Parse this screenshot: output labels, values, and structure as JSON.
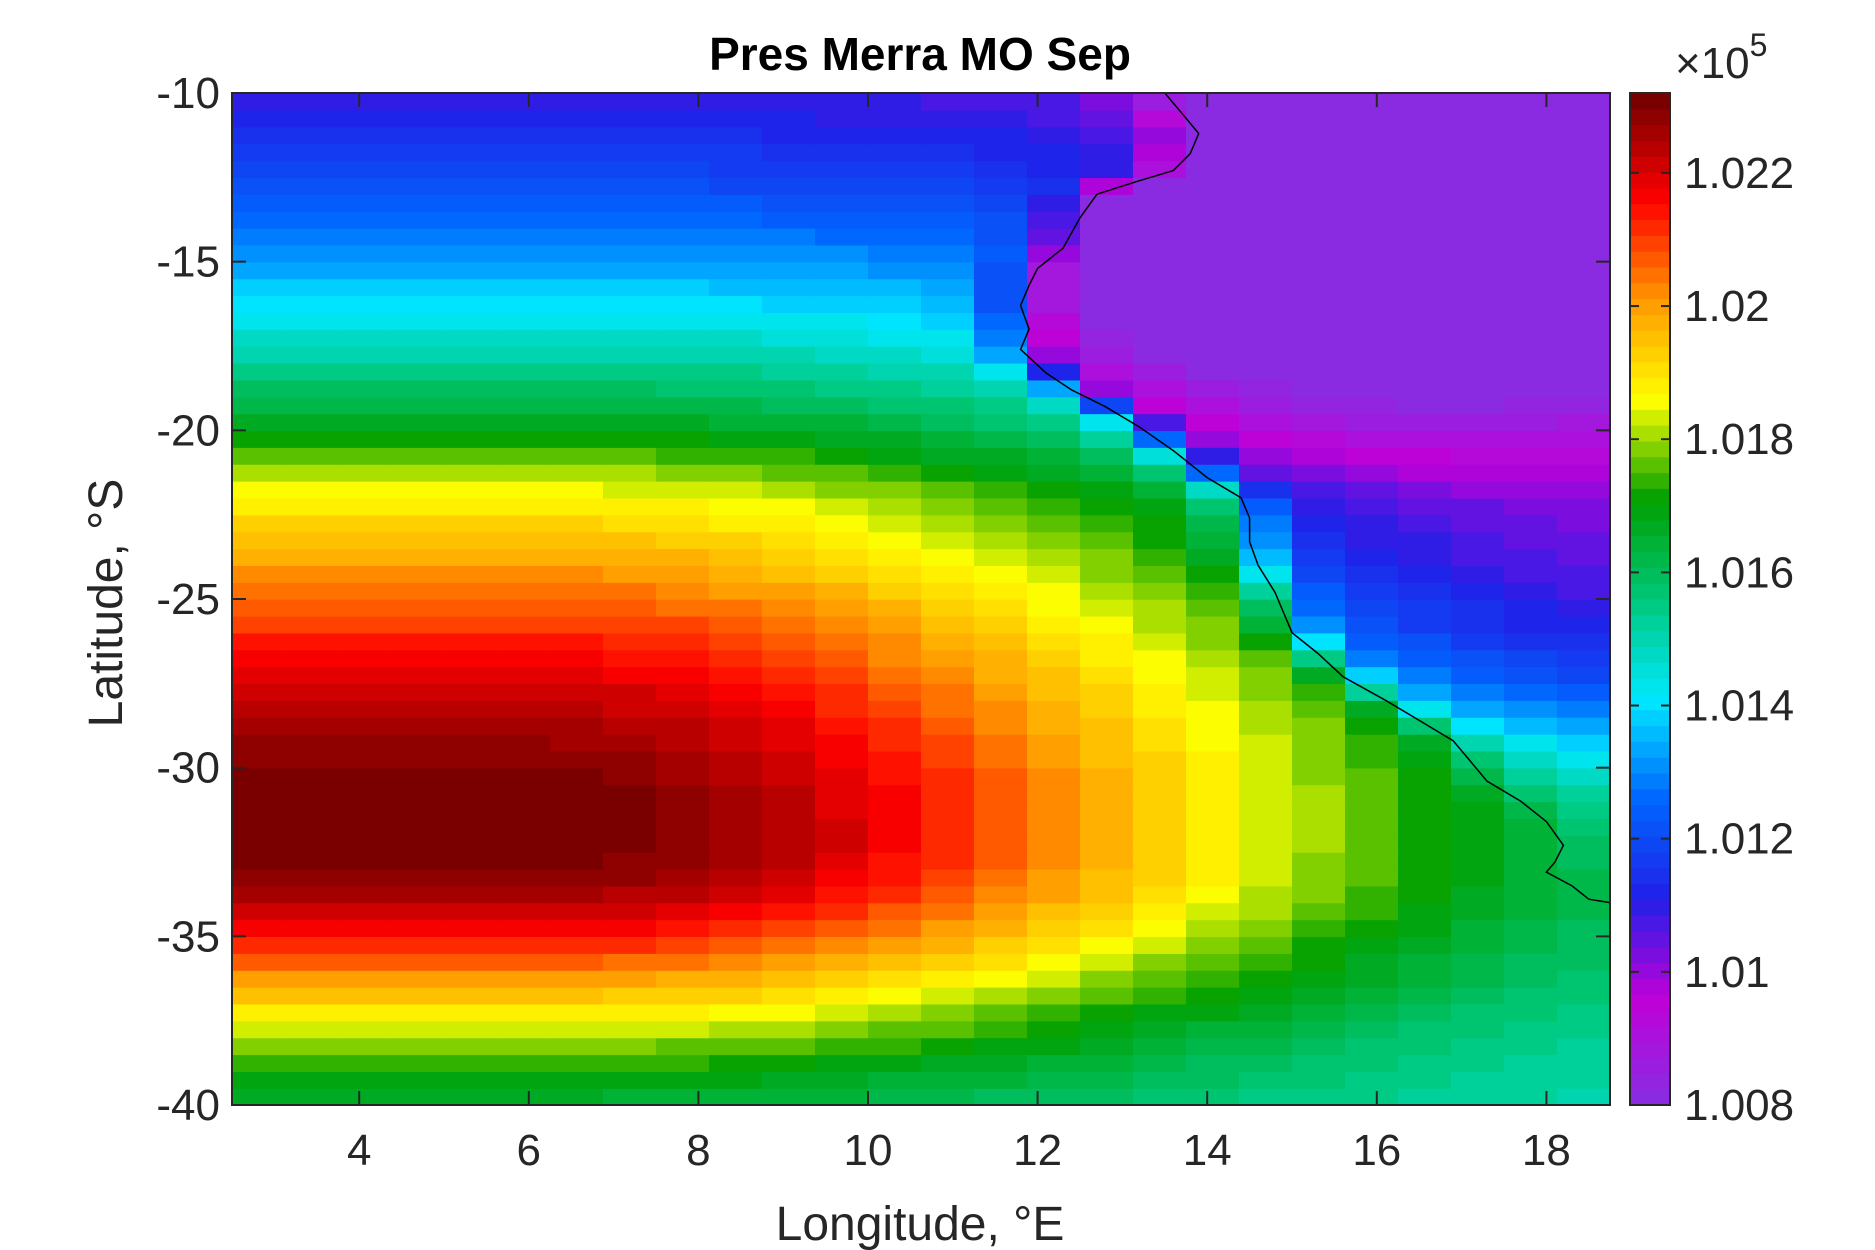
{
  "chart_data": {
    "type": "heatmap",
    "title": "Pres Merra MO Sep",
    "xlabel": "Longitude, °E",
    "ylabel": "Latitude, °S",
    "xlim": [
      2.5,
      18.75
    ],
    "ylim": [
      -40,
      -10
    ],
    "x_ticks": [
      4,
      6,
      8,
      10,
      12,
      14,
      16,
      18
    ],
    "x_tick_labels": [
      "4",
      "6",
      "8",
      "10",
      "12",
      "14",
      "16",
      "18"
    ],
    "y_ticks": [
      -10,
      -15,
      -20,
      -25,
      -30,
      -35,
      -40
    ],
    "y_tick_labels": [
      "-10",
      "-15",
      "-20",
      "-25",
      "-30",
      "-35",
      "-40"
    ],
    "grid": false,
    "cell_size_deg": {
      "lon": 0.625,
      "lat": 0.5
    },
    "colormap": [
      "#8a2be2",
      "#c000d8",
      "#2020e8",
      "#0066ff",
      "#00e8ff",
      "#00c87a",
      "#00a000",
      "#ffff00",
      "#ff9900",
      "#ff0000",
      "#7a0000"
    ],
    "colorbar": {
      "range": [
        1.008,
        1.0232
      ],
      "ticks": [
        1.008,
        1.01,
        1.012,
        1.014,
        1.016,
        1.018,
        1.02,
        1.022
      ],
      "tick_labels": [
        "1.008",
        "1.01",
        "1.012",
        "1.014",
        "1.016",
        "1.018",
        "1.02",
        "1.022"
      ],
      "multiplier_base": "×10",
      "multiplier_exponent": "5",
      "position": "right"
    },
    "field_units": "×10^5",
    "field_summary": {
      "high_center": {
        "lon": 4.5,
        "lat": -31.5,
        "value": 1.0232
      },
      "low_center": {
        "lon": 16,
        "lat": -15,
        "value": 1.0085
      },
      "land_low_secondary": {
        "lon": 17.5,
        "lat": -22,
        "value": 1.0115
      }
    },
    "coastline": [
      [
        13.5,
        -10
      ],
      [
        13.7,
        -10.6
      ],
      [
        13.9,
        -11.2
      ],
      [
        13.8,
        -11.8
      ],
      [
        13.6,
        -12.3
      ],
      [
        13.2,
        -12.6
      ],
      [
        12.7,
        -13.0
      ],
      [
        12.5,
        -13.7
      ],
      [
        12.3,
        -14.6
      ],
      [
        12.0,
        -15.2
      ],
      [
        11.9,
        -15.7
      ],
      [
        11.8,
        -16.3
      ],
      [
        11.9,
        -17.0
      ],
      [
        11.8,
        -17.6
      ],
      [
        12.1,
        -18.3
      ],
      [
        12.4,
        -18.8
      ],
      [
        12.8,
        -19.3
      ],
      [
        13.2,
        -19.9
      ],
      [
        13.6,
        -20.6
      ],
      [
        14.0,
        -21.4
      ],
      [
        14.4,
        -22.0
      ],
      [
        14.5,
        -22.6
      ],
      [
        14.5,
        -23.3
      ],
      [
        14.6,
        -24.0
      ],
      [
        14.8,
        -24.8
      ],
      [
        14.9,
        -25.4
      ],
      [
        15.0,
        -26.0
      ],
      [
        15.3,
        -26.6
      ],
      [
        15.6,
        -27.3
      ],
      [
        16.1,
        -28.0
      ],
      [
        16.5,
        -28.6
      ],
      [
        16.9,
        -29.2
      ],
      [
        17.1,
        -29.8
      ],
      [
        17.3,
        -30.4
      ],
      [
        17.7,
        -31.0
      ],
      [
        18.0,
        -31.6
      ],
      [
        18.2,
        -32.3
      ],
      [
        18.1,
        -32.8
      ],
      [
        18.0,
        -33.1
      ],
      [
        18.3,
        -33.5
      ],
      [
        18.5,
        -33.9
      ],
      [
        18.75,
        -34.0
      ]
    ]
  }
}
